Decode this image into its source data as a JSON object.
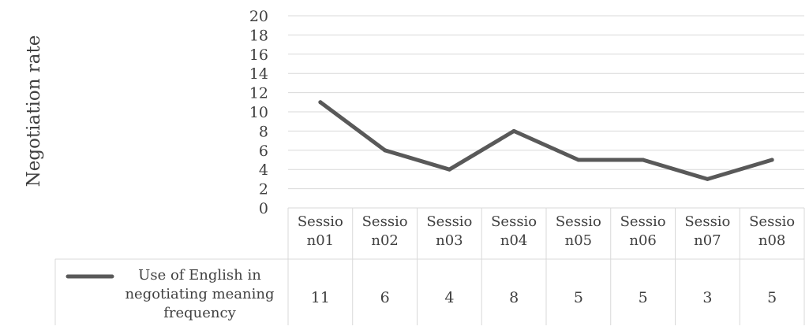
{
  "chart_data": {
    "type": "line",
    "ylabel": "Negotiation rate",
    "ylim": [
      0,
      20
    ],
    "y_ticks": [
      "0",
      "2",
      "4",
      "6",
      "8",
      "10",
      "12",
      "14",
      "16",
      "18",
      "20"
    ],
    "grid": true,
    "categories": [
      [
        "Sessio",
        "n01"
      ],
      [
        "Sessio",
        "n02"
      ],
      [
        "Sessio",
        "n03"
      ],
      [
        "Sessio",
        "n04"
      ],
      [
        "Sessio",
        "n05"
      ],
      [
        "Sessio",
        "n06"
      ],
      [
        "Sessio",
        "n07"
      ],
      [
        "Sessio",
        "n08"
      ]
    ],
    "series": [
      {
        "name": [
          "Use of English in",
          "negotiating meaning",
          "frequency"
        ],
        "values": [
          11,
          6,
          4,
          8,
          5,
          5,
          3,
          5
        ],
        "value_labels": [
          "11",
          "6",
          "4",
          "8",
          "5",
          "5",
          "3",
          "5"
        ]
      }
    ],
    "legend": "data-table-bottom",
    "colors": {
      "line": "#595959",
      "grid": "#d9d9d9",
      "text": "#404040"
    }
  }
}
